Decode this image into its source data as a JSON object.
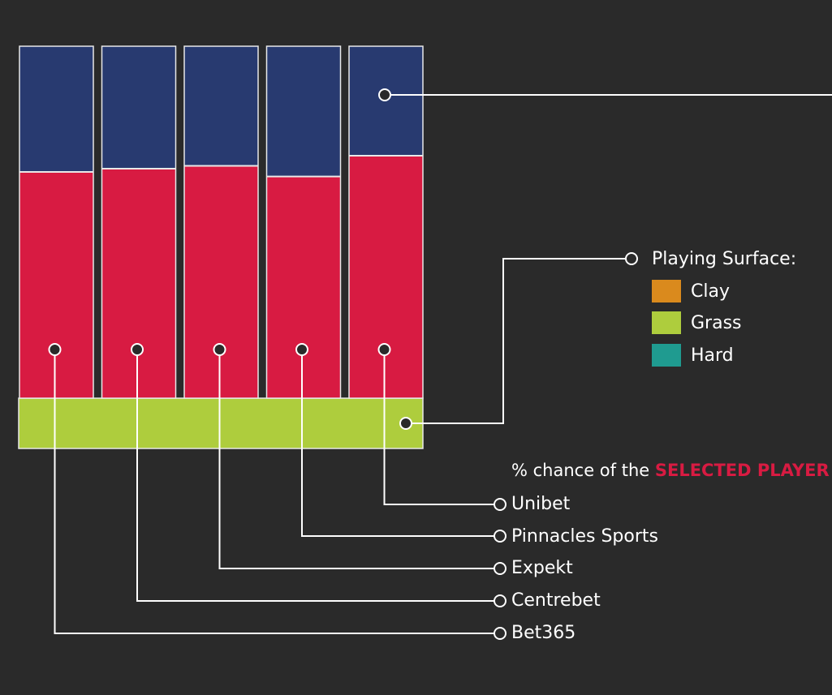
{
  "colors": {
    "background": "#2a2a2a",
    "top_segment": "#283a70",
    "bottom_segment": "#d81b42",
    "surface_bar": "#aecd3d",
    "bar_border": "#e8e8e8",
    "line": "#ffffff",
    "highlight": "#d81b42"
  },
  "legend": {
    "title": "Playing Surface:",
    "items": [
      {
        "label": "Clay",
        "color": "#da8a1d"
      },
      {
        "label": "Grass",
        "color": "#aecd3d"
      },
      {
        "label": "Hard",
        "color": "#1f9b90"
      }
    ]
  },
  "caption": {
    "prefix": "% chance of the ",
    "highlight": "SELECTED PLAYER"
  },
  "chart_data": {
    "type": "bar",
    "stacked": true,
    "normalized": true,
    "surface": "Grass",
    "categories": [
      "Bet365",
      "Centrebet",
      "Expekt",
      "Pinnacles Sports",
      "Unibet"
    ],
    "series": [
      {
        "values": [
          0.357,
          0.348,
          0.34,
          0.37,
          0.311
        ],
        "color": "#283a70"
      },
      {
        "values": [
          0.643,
          0.652,
          0.66,
          0.63,
          0.689
        ],
        "color": "#d81b42"
      }
    ]
  }
}
